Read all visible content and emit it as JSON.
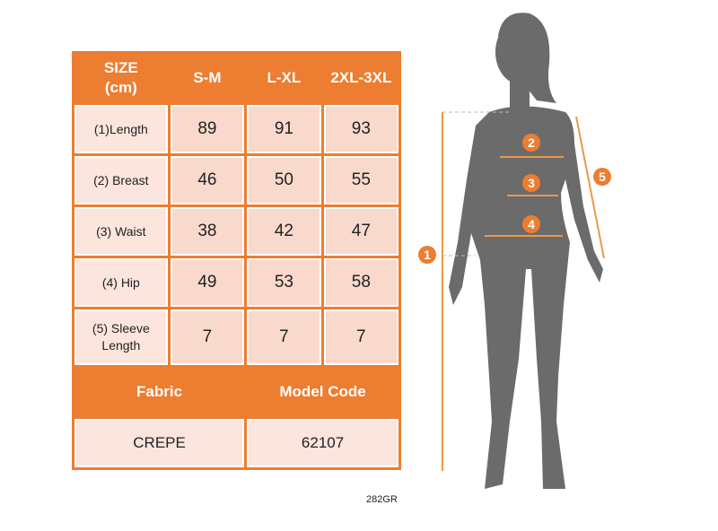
{
  "table": {
    "header": [
      "SIZE\n(cm)",
      "S-M",
      "L-XL",
      "2XL-3XL"
    ],
    "rows": [
      {
        "label": "(1)Length",
        "values": [
          "89",
          "91",
          "93"
        ]
      },
      {
        "label": "(2) Breast",
        "values": [
          "46",
          "50",
          "55"
        ]
      },
      {
        "label": "(3) Waist",
        "values": [
          "38",
          "42",
          "47"
        ]
      },
      {
        "label": "(4) Hip",
        "values": [
          "49",
          "53",
          "58"
        ]
      },
      {
        "label": "(5) Sleeve Length",
        "values": [
          "7",
          "7",
          "7"
        ]
      }
    ],
    "info_header": [
      "Fabric",
      "Model Code"
    ],
    "info_values": [
      "CREPE",
      "62107"
    ]
  },
  "product_code": "282GR",
  "figure": {
    "markers": [
      "1",
      "2",
      "3",
      "4",
      "5"
    ]
  },
  "colors": {
    "accent": "#ed7d31",
    "cell": "#f8d9cc",
    "silhouette": "#6b6b6b"
  }
}
